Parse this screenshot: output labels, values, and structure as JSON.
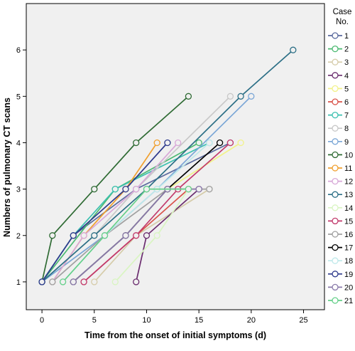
{
  "chart_data": {
    "type": "line",
    "xlabel": "Time from the onset of initial symptoms (d)",
    "ylabel": "Numbers of pulmonary CT scans",
    "xlim": [
      -1.5,
      27
    ],
    "ylim": [
      0.4,
      7
    ],
    "xticks": [
      0,
      5,
      10,
      15,
      20,
      25
    ],
    "yticks": [
      1,
      2,
      3,
      4,
      5,
      6
    ],
    "grid": false,
    "legend": {
      "title": "Case No.",
      "title_line1": "Case",
      "title_line2": "No.",
      "placement": "right"
    },
    "series": [
      {
        "name": "1",
        "color": "#5a6a9e",
        "x": [
          0,
          3,
          9,
          18
        ],
        "y": [
          1,
          2,
          3,
          4
        ]
      },
      {
        "name": "2",
        "color": "#4cba72",
        "x": [
          0,
          7,
          15
        ],
        "y": [
          1,
          3,
          4
        ]
      },
      {
        "name": "3",
        "color": "#d6ccaa",
        "x": [
          5,
          9,
          16
        ],
        "y": [
          1,
          2,
          3
        ]
      },
      {
        "name": "4",
        "color": "#6a2c6e",
        "x": [
          9,
          10,
          15
        ],
        "y": [
          1,
          2,
          3
        ]
      },
      {
        "name": "5",
        "color": "#f2f28a",
        "x": [
          12,
          19
        ],
        "y": [
          3,
          4
        ]
      },
      {
        "name": "6",
        "color": "#d9534a",
        "x": [
          4,
          14
        ],
        "y": [
          1,
          3
        ]
      },
      {
        "name": "7",
        "color": "#3cc0b0",
        "x": [
          0,
          3,
          7,
          16
        ],
        "y": [
          1,
          2,
          3,
          4
        ]
      },
      {
        "name": "8",
        "color": "#c8c8c8",
        "x": [
          0,
          5,
          9,
          18
        ],
        "y": [
          1,
          2,
          3,
          5
        ]
      },
      {
        "name": "9",
        "color": "#7aa6d6",
        "x": [
          0,
          6,
          11,
          20
        ],
        "y": [
          1,
          2,
          3,
          5
        ]
      },
      {
        "name": "10",
        "color": "#2f6b34",
        "x": [
          0,
          1,
          5,
          9,
          14
        ],
        "y": [
          1,
          2,
          3,
          4,
          5
        ]
      },
      {
        "name": "11",
        "color": "#f0a030",
        "x": [
          1,
          4,
          8,
          11
        ],
        "y": [
          1,
          2,
          3,
          4
        ]
      },
      {
        "name": "12",
        "color": "#d8a8d8",
        "x": [
          1,
          4,
          9,
          13
        ],
        "y": [
          1,
          2,
          3,
          4
        ]
      },
      {
        "name": "13",
        "color": "#2c6f86",
        "x": [
          0,
          5,
          10,
          19,
          24
        ],
        "y": [
          1,
          2,
          3,
          5,
          6
        ]
      },
      {
        "name": "14",
        "color": "#d9f5c2",
        "x": [
          7,
          11,
          14
        ],
        "y": [
          1,
          2,
          3
        ]
      },
      {
        "name": "15",
        "color": "#c23a6c",
        "x": [
          4,
          9,
          13,
          18
        ],
        "y": [
          1,
          2,
          3,
          4
        ]
      },
      {
        "name": "16",
        "color": "#a0a0a0",
        "x": [
          1,
          6,
          12,
          16
        ],
        "y": [
          1,
          2,
          3,
          3
        ]
      },
      {
        "name": "17",
        "color": "#000000",
        "x": [
          3,
          8,
          12,
          17
        ],
        "y": [
          1,
          2,
          3,
          4
        ]
      },
      {
        "name": "18",
        "color": "#bfe9ea",
        "x": [
          2,
          6,
          11,
          16
        ],
        "y": [
          1,
          2,
          3,
          4
        ]
      },
      {
        "name": "19",
        "color": "#2e3a8c",
        "x": [
          0,
          3,
          8,
          12
        ],
        "y": [
          1,
          2,
          3,
          4
        ]
      },
      {
        "name": "20",
        "color": "#8a7aaa",
        "x": [
          3,
          8,
          12,
          15
        ],
        "y": [
          1,
          2,
          3,
          3
        ]
      },
      {
        "name": "21",
        "color": "#66d08a",
        "x": [
          2,
          6,
          10,
          14
        ],
        "y": [
          1,
          2,
          3,
          3
        ]
      }
    ]
  }
}
